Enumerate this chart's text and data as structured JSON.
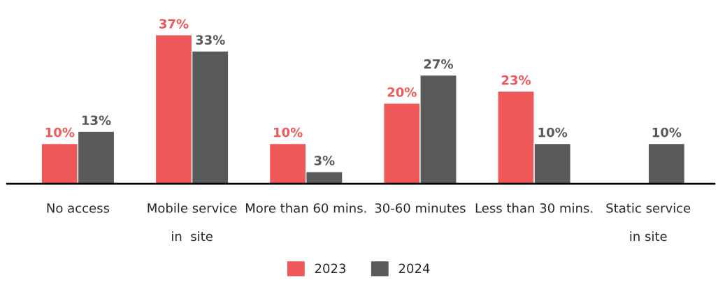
{
  "chart_data": {
    "type": "bar",
    "categories": [
      "No access",
      "Mobile service\n\nin  site",
      "More than 60 mins.",
      "30-60 minutes",
      "Less than 30 mins.",
      "Static service\n\nin site"
    ],
    "series": [
      {
        "name": "2023",
        "color": "#ef5859",
        "values": [
          10,
          37,
          10,
          20,
          23,
          null
        ],
        "value_labels": [
          "10%",
          "37%",
          "10%",
          "20%",
          "23%",
          null
        ]
      },
      {
        "name": "2024",
        "color": "#58595b",
        "values": [
          13,
          33,
          3,
          27,
          10,
          10
        ],
        "value_labels": [
          "13%",
          "33%",
          "3%",
          "27%",
          "10%",
          "10%"
        ]
      }
    ],
    "legend": "bottom",
    "grid": false
  }
}
